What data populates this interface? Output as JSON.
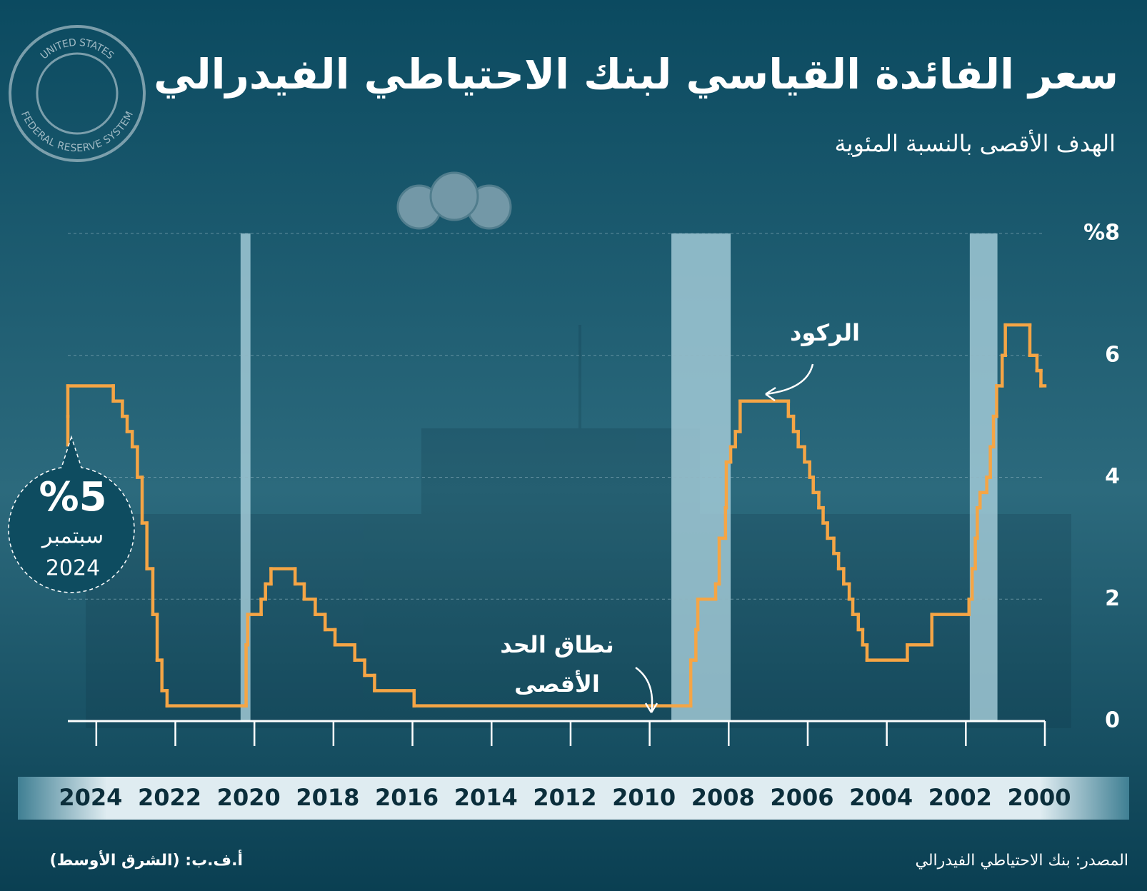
{
  "logo": {
    "top": "UNITED STATES",
    "bottom": "FEDERAL RESERVE SYSTEM"
  },
  "chart_data": {
    "type": "line",
    "step": true,
    "title": "سعر الفائدة القياسي لبنك الاحتياطي الفيدرالي",
    "subtitle": "الهدف الأقصى بالنسبة المئوية",
    "x": [
      2000.0,
      2000.1,
      2000.2,
      2000.38,
      2001.0,
      2001.08,
      2001.22,
      2001.3,
      2001.38,
      2001.47,
      2001.64,
      2001.71,
      2001.76,
      2001.84,
      2001.92,
      2002.86,
      2003.48,
      2004.5,
      2004.61,
      2004.72,
      2004.86,
      2004.95,
      2005.09,
      2005.22,
      2005.34,
      2005.5,
      2005.61,
      2005.72,
      2005.86,
      2005.95,
      2006.08,
      2006.24,
      2006.36,
      2006.49,
      2007.71,
      2007.83,
      2007.95,
      2008.06,
      2008.08,
      2008.24,
      2008.33,
      2008.78,
      2008.83,
      2008.96,
      2015.96,
      2016.96,
      2017.21,
      2017.46,
      2017.96,
      2018.21,
      2018.46,
      2018.74,
      2018.97,
      2019.58,
      2019.72,
      2019.83,
      2020.17,
      2020.21,
      2022.21,
      2022.34,
      2022.46,
      2022.57,
      2022.72,
      2022.84,
      2022.96,
      2023.09,
      2023.22,
      2023.34,
      2023.57,
      2024.72
    ],
    "series": [
      {
        "name": "سعر الفائدة",
        "color": "#f5a545",
        "values": [
          5.5,
          5.75,
          6.0,
          6.5,
          6.0,
          5.5,
          5.0,
          4.5,
          4.0,
          3.75,
          3.5,
          3.0,
          2.5,
          2.0,
          1.75,
          1.25,
          1.0,
          1.25,
          1.5,
          1.75,
          2.0,
          2.25,
          2.5,
          2.75,
          3.0,
          3.25,
          3.5,
          3.75,
          4.0,
          4.25,
          4.5,
          4.75,
          5.0,
          5.25,
          4.75,
          4.5,
          4.25,
          3.5,
          3.0,
          2.25,
          2.0,
          1.5,
          1.0,
          0.25,
          0.5,
          0.75,
          1.0,
          1.25,
          1.5,
          1.75,
          2.0,
          2.25,
          2.5,
          2.25,
          2.0,
          1.75,
          1.25,
          0.25,
          0.5,
          1.0,
          1.75,
          2.5,
          3.25,
          4.0,
          4.5,
          4.75,
          5.0,
          5.25,
          5.5,
          5.0
        ]
      }
    ],
    "recessions": [
      [
        2001.2,
        2001.9
      ],
      [
        2007.95,
        2009.45
      ],
      [
        2020.1,
        2020.35
      ]
    ],
    "recession_color": "#a9cfdc",
    "xlim": [
      2000,
      2024.72
    ],
    "x_reversed": true,
    "xticks": [
      2000,
      2002,
      2004,
      2006,
      2008,
      2010,
      2012,
      2014,
      2016,
      2018,
      2020,
      2022,
      2024
    ],
    "ylim": [
      0,
      8
    ],
    "yticks": [
      0,
      2,
      4,
      6,
      {
        "value": 8,
        "label": "%8"
      }
    ],
    "grid": true,
    "annotations": {
      "recession": "الركود",
      "upper_line1": "نطاق الحد",
      "upper_line2": "الأقصى"
    },
    "callout": {
      "label": "%5",
      "month": "سبتمبر",
      "year": "2024"
    },
    "source": "المصدر: بنك الاحتياطي الفيدرالي",
    "credit": "أ.ف.ب: (الشرق الأوسط)"
  }
}
